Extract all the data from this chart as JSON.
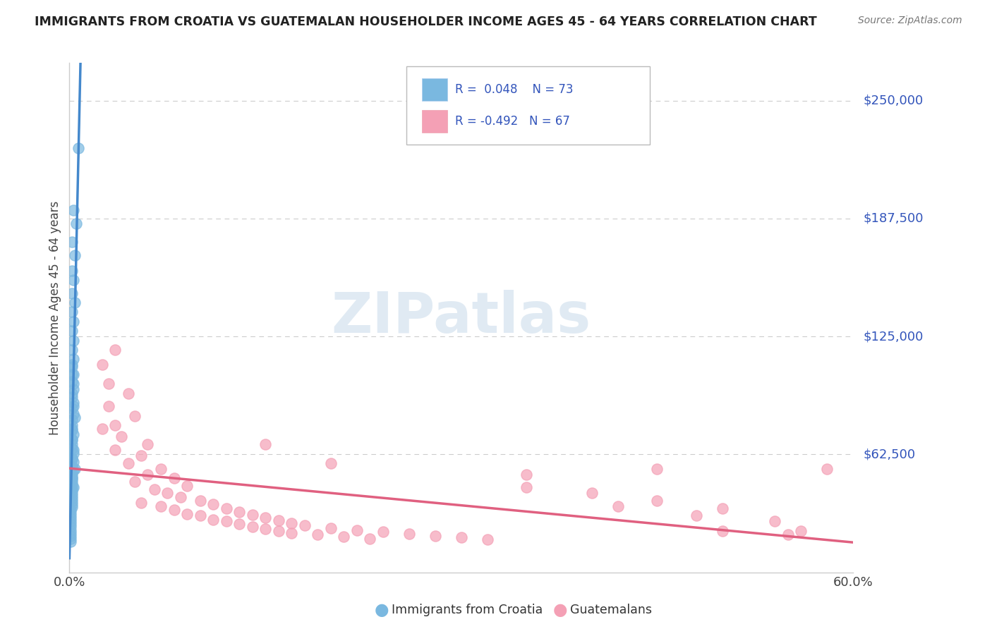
{
  "title": "IMMIGRANTS FROM CROATIA VS GUATEMALAN HOUSEHOLDER INCOME AGES 45 - 64 YEARS CORRELATION CHART",
  "source": "Source: ZipAtlas.com",
  "ylabel": "Householder Income Ages 45 - 64 years",
  "xlim": [
    0.0,
    0.6
  ],
  "ylim": [
    0,
    270000
  ],
  "yticks": [
    62500,
    125000,
    187500,
    250000
  ],
  "ytick_labels": [
    "$62,500",
    "$125,000",
    "$187,500",
    "$250,000"
  ],
  "croatia_color": "#7ab8e0",
  "guatemala_color": "#f4a0b5",
  "croatia_line_color": "#4488cc",
  "guatemala_line_color": "#e06080",
  "dashed_line_color": "#88aacc",
  "background_color": "#ffffff",
  "watermark": "ZIPatlas",
  "croatia_points": [
    [
      0.007,
      225000
    ],
    [
      0.003,
      192000
    ],
    [
      0.005,
      185000
    ],
    [
      0.002,
      175000
    ],
    [
      0.004,
      168000
    ],
    [
      0.002,
      160000
    ],
    [
      0.003,
      155000
    ],
    [
      0.002,
      148000
    ],
    [
      0.004,
      143000
    ],
    [
      0.002,
      138000
    ],
    [
      0.003,
      133000
    ],
    [
      0.002,
      128000
    ],
    [
      0.003,
      123000
    ],
    [
      0.002,
      118000
    ],
    [
      0.003,
      113000
    ],
    [
      0.002,
      109000
    ],
    [
      0.003,
      105000
    ],
    [
      0.002,
      101000
    ],
    [
      0.003,
      97000
    ],
    [
      0.002,
      93000
    ],
    [
      0.003,
      90000
    ],
    [
      0.002,
      87000
    ],
    [
      0.003,
      84000
    ],
    [
      0.002,
      81000
    ],
    [
      0.002,
      78000
    ],
    [
      0.002,
      75500
    ],
    [
      0.003,
      73000
    ],
    [
      0.002,
      70500
    ],
    [
      0.002,
      68000
    ],
    [
      0.002,
      65500
    ],
    [
      0.003,
      63000
    ],
    [
      0.002,
      60500
    ],
    [
      0.003,
      58500
    ],
    [
      0.002,
      56500
    ],
    [
      0.003,
      54500
    ],
    [
      0.002,
      52500
    ],
    [
      0.002,
      51000
    ],
    [
      0.002,
      49500
    ],
    [
      0.002,
      48000
    ],
    [
      0.002,
      46500
    ],
    [
      0.002,
      45000
    ],
    [
      0.002,
      43500
    ],
    [
      0.002,
      42000
    ],
    [
      0.002,
      40500
    ],
    [
      0.002,
      39000
    ],
    [
      0.002,
      37500
    ],
    [
      0.002,
      36000
    ],
    [
      0.002,
      34500
    ],
    [
      0.001,
      33000
    ],
    [
      0.001,
      31500
    ],
    [
      0.001,
      30000
    ],
    [
      0.001,
      28500
    ],
    [
      0.001,
      27000
    ],
    [
      0.001,
      25500
    ],
    [
      0.001,
      24000
    ],
    [
      0.001,
      22500
    ],
    [
      0.001,
      21000
    ],
    [
      0.001,
      19500
    ],
    [
      0.001,
      18000
    ],
    [
      0.001,
      16500
    ],
    [
      0.002,
      110000
    ],
    [
      0.002,
      105000
    ],
    [
      0.003,
      100000
    ],
    [
      0.002,
      95000
    ],
    [
      0.003,
      88000
    ],
    [
      0.004,
      82000
    ],
    [
      0.002,
      76000
    ],
    [
      0.002,
      70000
    ],
    [
      0.003,
      65000
    ],
    [
      0.002,
      60000
    ],
    [
      0.004,
      55000
    ],
    [
      0.002,
      50000
    ],
    [
      0.003,
      45000
    ]
  ],
  "guatemala_points": [
    [
      0.025,
      110000
    ],
    [
      0.03,
      100000
    ],
    [
      0.035,
      118000
    ],
    [
      0.045,
      95000
    ],
    [
      0.03,
      88000
    ],
    [
      0.05,
      83000
    ],
    [
      0.025,
      76000
    ],
    [
      0.04,
      72000
    ],
    [
      0.06,
      68000
    ],
    [
      0.035,
      65000
    ],
    [
      0.055,
      62000
    ],
    [
      0.045,
      58000
    ],
    [
      0.07,
      55000
    ],
    [
      0.06,
      52000
    ],
    [
      0.08,
      50000
    ],
    [
      0.05,
      48000
    ],
    [
      0.09,
      46000
    ],
    [
      0.065,
      44000
    ],
    [
      0.075,
      42000
    ],
    [
      0.085,
      40000
    ],
    [
      0.1,
      38000
    ],
    [
      0.055,
      37000
    ],
    [
      0.11,
      36000
    ],
    [
      0.07,
      35000
    ],
    [
      0.12,
      34000
    ],
    [
      0.08,
      33000
    ],
    [
      0.13,
      32000
    ],
    [
      0.09,
      31000
    ],
    [
      0.14,
      30500
    ],
    [
      0.1,
      30000
    ],
    [
      0.15,
      29000
    ],
    [
      0.11,
      28000
    ],
    [
      0.16,
      27500
    ],
    [
      0.12,
      27000
    ],
    [
      0.17,
      26000
    ],
    [
      0.13,
      25500
    ],
    [
      0.18,
      25000
    ],
    [
      0.14,
      24000
    ],
    [
      0.2,
      23500
    ],
    [
      0.15,
      23000
    ],
    [
      0.22,
      22500
    ],
    [
      0.16,
      22000
    ],
    [
      0.24,
      21500
    ],
    [
      0.17,
      21000
    ],
    [
      0.26,
      20500
    ],
    [
      0.19,
      20000
    ],
    [
      0.28,
      19500
    ],
    [
      0.21,
      19000
    ],
    [
      0.3,
      18500
    ],
    [
      0.23,
      18000
    ],
    [
      0.32,
      17500
    ],
    [
      0.035,
      78000
    ],
    [
      0.15,
      68000
    ],
    [
      0.2,
      58000
    ],
    [
      0.35,
      45000
    ],
    [
      0.4,
      42000
    ],
    [
      0.45,
      38000
    ],
    [
      0.5,
      34000
    ],
    [
      0.45,
      55000
    ],
    [
      0.35,
      52000
    ],
    [
      0.5,
      22000
    ],
    [
      0.55,
      20000
    ],
    [
      0.58,
      55000
    ],
    [
      0.56,
      22000
    ],
    [
      0.54,
      27000
    ],
    [
      0.48,
      30000
    ],
    [
      0.42,
      35000
    ]
  ]
}
